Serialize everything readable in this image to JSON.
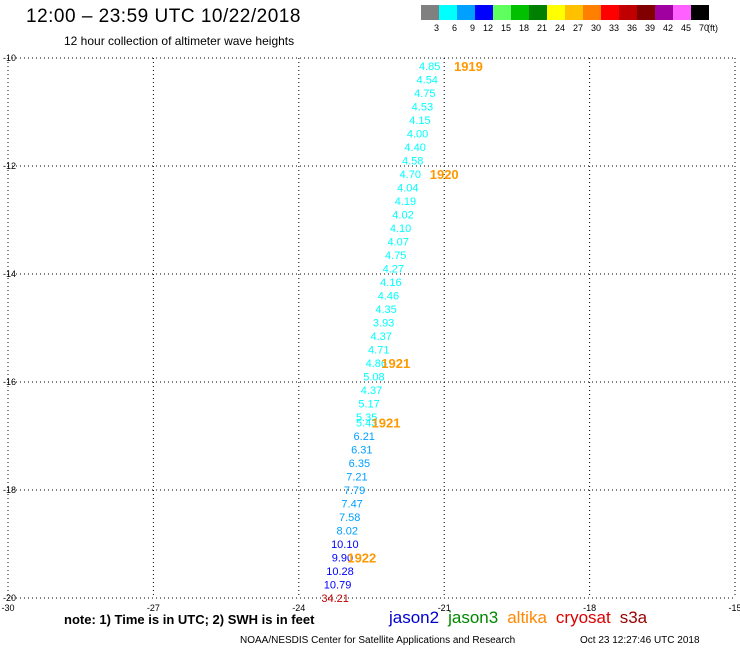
{
  "header": {
    "title": "12:00 – 23:59 UTC 10/22/2018",
    "subtitle": "12 hour collection of altimeter wave heights"
  },
  "color_scale": {
    "labels": [
      "3",
      "6",
      "9",
      "12",
      "15",
      "18",
      "21",
      "24",
      "27",
      "30",
      "33",
      "36",
      "39",
      "42",
      "45",
      "70"
    ],
    "unit": "(ft)",
    "colors": [
      "#808080",
      "#00ffff",
      "#00a0ff",
      "#0000ff",
      "#60ff60",
      "#00c000",
      "#008000",
      "#ffff00",
      "#ffc000",
      "#ff8000",
      "#ff0000",
      "#c00000",
      "#800000",
      "#a000a0",
      "#ff60ff",
      "#000000"
    ]
  },
  "footer": {
    "note": "note: 1) Time is in UTC; 2) SWH is in feet",
    "credit": "NOAA/NESDIS Center for Satellite Applications and Research",
    "timestamp": "Oct 23 12:27:46 UTC 2018"
  },
  "legend": [
    {
      "name": "jason2",
      "color": "#0000cc"
    },
    {
      "name": "jason3",
      "color": "#008800"
    },
    {
      "name": "altika",
      "color": "#ff8800"
    },
    {
      "name": "cryosat",
      "color": "#dd0000"
    },
    {
      "name": "s3a",
      "color": "#990000"
    }
  ],
  "chart_data": {
    "type": "scatter",
    "title": "12:00 – 23:59 UTC 10/22/2018",
    "subtitle": "12 hour collection of altimeter wave heights",
    "xlim": [
      -30,
      -15
    ],
    "ylim": [
      -20,
      -10
    ],
    "xticks": [
      "-30",
      "-27",
      "-24",
      "-21",
      "-18",
      "-15"
    ],
    "yticks": [
      "-10",
      "-12",
      "-14",
      "-16",
      "-18",
      "-20"
    ],
    "grid": true,
    "grid_style": "dotted",
    "series": [
      {
        "name": "altika",
        "color_by": "wave height",
        "points": [
          {
            "x": -21.3,
            "y": -10.15,
            "label": "4.85",
            "color": "#00ffff"
          },
          {
            "x": -21.35,
            "y": -10.4,
            "label": "4.54",
            "color": "#00ffff"
          },
          {
            "x": -21.4,
            "y": -10.65,
            "label": "4.75",
            "color": "#00ffff"
          },
          {
            "x": -21.45,
            "y": -10.9,
            "label": "4.53",
            "color": "#00ffff"
          },
          {
            "x": -21.5,
            "y": -11.15,
            "label": "4.15",
            "color": "#00ffff"
          },
          {
            "x": -21.55,
            "y": -11.4,
            "label": "4.00",
            "color": "#00ffff"
          },
          {
            "x": -21.6,
            "y": -11.65,
            "label": "4.40",
            "color": "#00ffff"
          },
          {
            "x": -21.65,
            "y": -11.9,
            "label": "4.58",
            "color": "#00ffff"
          },
          {
            "x": -21.7,
            "y": -12.15,
            "label": "4.70",
            "color": "#00ffff"
          },
          {
            "x": -21.75,
            "y": -12.4,
            "label": "4.04",
            "color": "#00ffff"
          },
          {
            "x": -21.8,
            "y": -12.65,
            "label": "4.19",
            "color": "#00ffff"
          },
          {
            "x": -21.85,
            "y": -12.9,
            "label": "4.02",
            "color": "#00ffff"
          },
          {
            "x": -21.9,
            "y": -13.15,
            "label": "4.10",
            "color": "#00ffff"
          },
          {
            "x": -21.95,
            "y": -13.4,
            "label": "4.07",
            "color": "#00ffff"
          },
          {
            "x": -22.0,
            "y": -13.65,
            "label": "4.75",
            "color": "#00ffff"
          },
          {
            "x": -22.05,
            "y": -13.9,
            "label": "4.27",
            "color": "#00ffff"
          },
          {
            "x": -22.1,
            "y": -14.15,
            "label": "4.16",
            "color": "#00ffff"
          },
          {
            "x": -22.15,
            "y": -14.4,
            "label": "4.46",
            "color": "#00ffff"
          },
          {
            "x": -22.2,
            "y": -14.65,
            "label": "4.35",
            "color": "#00ffff"
          },
          {
            "x": -22.25,
            "y": -14.9,
            "label": "3.93",
            "color": "#00ffff"
          },
          {
            "x": -22.3,
            "y": -15.15,
            "label": "4.37",
            "color": "#00ffff"
          },
          {
            "x": -22.35,
            "y": -15.4,
            "label": "4.71",
            "color": "#00ffff"
          },
          {
            "x": -22.4,
            "y": -15.65,
            "label": "4.86",
            "color": "#00ffff"
          },
          {
            "x": -22.45,
            "y": -15.9,
            "label": "5.08",
            "color": "#00ffff"
          },
          {
            "x": -22.5,
            "y": -16.15,
            "label": "4.37",
            "color": "#00ffff"
          },
          {
            "x": -22.55,
            "y": -16.4,
            "label": "5.17",
            "color": "#00ffff"
          },
          {
            "x": -22.6,
            "y": -16.65,
            "label": "5.35",
            "color": "#00ffff"
          },
          {
            "x": -22.6,
            "y": -16.75,
            "label": "5.43",
            "color": "#00ffff"
          },
          {
            "x": -22.65,
            "y": -17.0,
            "label": "6.21",
            "color": "#00a0ff"
          },
          {
            "x": -22.7,
            "y": -17.25,
            "label": "6.31",
            "color": "#00a0ff"
          },
          {
            "x": -22.75,
            "y": -17.5,
            "label": "6.35",
            "color": "#00a0ff"
          },
          {
            "x": -22.8,
            "y": -17.75,
            "label": "7.21",
            "color": "#00a0ff"
          },
          {
            "x": -22.85,
            "y": -18.0,
            "label": "7.79",
            "color": "#00a0ff"
          },
          {
            "x": -22.9,
            "y": -18.25,
            "label": "7.47",
            "color": "#00a0ff"
          },
          {
            "x": -22.95,
            "y": -18.5,
            "label": "7.58",
            "color": "#00a0ff"
          },
          {
            "x": -23.0,
            "y": -18.75,
            "label": "8.02",
            "color": "#00a0ff"
          },
          {
            "x": -23.05,
            "y": -19.0,
            "label": "10.10",
            "color": "#0000ff"
          },
          {
            "x": -23.1,
            "y": -19.25,
            "label": "9.90",
            "color": "#0000ff"
          },
          {
            "x": -23.15,
            "y": -19.5,
            "label": "10.28",
            "color": "#0000ff"
          },
          {
            "x": -23.2,
            "y": -19.75,
            "label": "10.79",
            "color": "#0000ff"
          },
          {
            "x": -23.25,
            "y": -20.0,
            "label": "34.21",
            "color": "#c00000"
          }
        ]
      }
    ],
    "time_labels": [
      {
        "x": -20.5,
        "y": -10.15,
        "text": "1919",
        "color": "#ff9900"
      },
      {
        "x": -21.0,
        "y": -12.15,
        "text": "1920",
        "color": "#ff9900"
      },
      {
        "x": -22.0,
        "y": -15.65,
        "text": "1921",
        "color": "#ff9900"
      },
      {
        "x": -22.2,
        "y": -16.75,
        "text": "1921",
        "color": "#ff9900"
      },
      {
        "x": -22.7,
        "y": -19.25,
        "text": "1922",
        "color": "#ff9900"
      }
    ]
  }
}
